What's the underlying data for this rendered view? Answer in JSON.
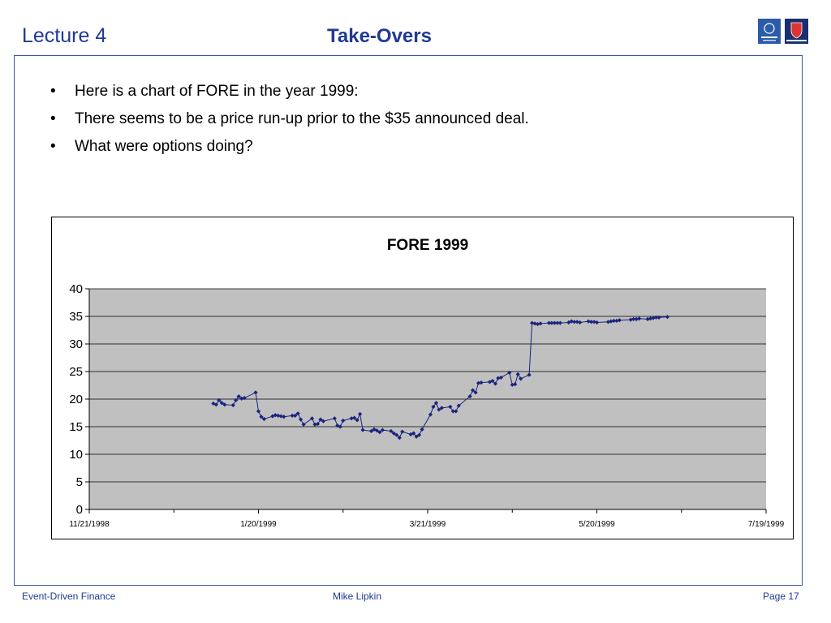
{
  "header": {
    "lecture": "Lecture 4",
    "title": "Take-Overs"
  },
  "bullets": [
    {
      "marker": "•",
      "text": "Here is a chart of FORE in the year 1999:"
    },
    {
      "marker": "•",
      "text": "There seems to be a price run-up prior to the $35 announced deal."
    },
    {
      "marker": "•",
      "text": "What were options doing?"
    }
  ],
  "footer": {
    "left": "Event-Driven Finance",
    "center": "Mike Lipkin",
    "right": "Page 17"
  },
  "colors": {
    "brand": "#1f3a93",
    "series": "#1a237e",
    "plot_bg": "#c0c0c0"
  },
  "chart_data": {
    "type": "line",
    "title": "FORE 1999",
    "xlabel": "",
    "ylabel": "",
    "xlim": [
      "1998-11-21",
      "1999-07-19"
    ],
    "ylim": [
      0,
      40
    ],
    "yticks": [
      0,
      5,
      10,
      15,
      20,
      25,
      30,
      35,
      40
    ],
    "xtick_dates": [
      "1998-11-21",
      "1999-01-20",
      "1999-03-21",
      "1999-05-20",
      "1999-07-19"
    ],
    "xtick_labels": [
      "11/21/1998",
      "1/20/1999",
      "3/21/1999",
      "5/20/1999",
      "7/19/1999"
    ],
    "minor_xtick_dates": [
      "1998-12-21",
      "1999-02-19",
      "1999-04-20",
      "1999-06-19"
    ],
    "grid": true,
    "legend": "none",
    "series": [
      {
        "marker": "diamond",
        "points": [
          [
            "1999-01-04",
            19.2
          ],
          [
            "1999-01-05",
            19.0
          ],
          [
            "1999-01-06",
            19.8
          ],
          [
            "1999-01-07",
            19.3
          ],
          [
            "1999-01-08",
            19.0
          ],
          [
            "1999-01-11",
            18.9
          ],
          [
            "1999-01-12",
            19.8
          ],
          [
            "1999-01-13",
            20.5
          ],
          [
            "1999-01-14",
            20.1
          ],
          [
            "1999-01-15",
            20.2
          ],
          [
            "1999-01-19",
            21.2
          ],
          [
            "1999-01-20",
            17.8
          ],
          [
            "1999-01-21",
            16.8
          ],
          [
            "1999-01-22",
            16.4
          ],
          [
            "1999-01-25",
            16.9
          ],
          [
            "1999-01-26",
            17.1
          ],
          [
            "1999-01-27",
            17.0
          ],
          [
            "1999-01-28",
            16.9
          ],
          [
            "1999-01-29",
            16.8
          ],
          [
            "1999-02-01",
            17.0
          ],
          [
            "1999-02-02",
            17.0
          ],
          [
            "1999-02-03",
            17.4
          ],
          [
            "1999-02-04",
            16.3
          ],
          [
            "1999-02-05",
            15.4
          ],
          [
            "1999-02-08",
            16.5
          ],
          [
            "1999-02-09",
            15.4
          ],
          [
            "1999-02-10",
            15.5
          ],
          [
            "1999-02-11",
            16.3
          ],
          [
            "1999-02-12",
            16.0
          ],
          [
            "1999-02-16",
            16.5
          ],
          [
            "1999-02-17",
            15.2
          ],
          [
            "1999-02-18",
            15.0
          ],
          [
            "1999-02-19",
            16.1
          ],
          [
            "1999-02-22",
            16.5
          ],
          [
            "1999-02-23",
            16.6
          ],
          [
            "1999-02-24",
            16.2
          ],
          [
            "1999-02-25",
            17.3
          ],
          [
            "1999-02-26",
            14.4
          ],
          [
            "1999-03-01",
            14.2
          ],
          [
            "1999-03-02",
            14.5
          ],
          [
            "1999-03-03",
            14.3
          ],
          [
            "1999-03-04",
            14.0
          ],
          [
            "1999-03-05",
            14.4
          ],
          [
            "1999-03-08",
            14.2
          ],
          [
            "1999-03-09",
            13.8
          ],
          [
            "1999-03-10",
            13.5
          ],
          [
            "1999-03-11",
            13.0
          ],
          [
            "1999-03-12",
            14.1
          ],
          [
            "1999-03-15",
            13.6
          ],
          [
            "1999-03-16",
            13.8
          ],
          [
            "1999-03-17",
            13.2
          ],
          [
            "1999-03-18",
            13.5
          ],
          [
            "1999-03-19",
            14.5
          ],
          [
            "1999-03-22",
            17.2
          ],
          [
            "1999-03-23",
            18.6
          ],
          [
            "1999-03-24",
            19.3
          ],
          [
            "1999-03-25",
            18.1
          ],
          [
            "1999-03-26",
            18.4
          ],
          [
            "1999-03-29",
            18.6
          ],
          [
            "1999-03-30",
            17.8
          ],
          [
            "1999-03-31",
            17.8
          ],
          [
            "1999-04-01",
            18.8
          ],
          [
            "1999-04-05",
            20.5
          ],
          [
            "1999-04-06",
            21.6
          ],
          [
            "1999-04-07",
            21.2
          ],
          [
            "1999-04-08",
            22.9
          ],
          [
            "1999-04-09",
            23.0
          ],
          [
            "1999-04-12",
            23.1
          ],
          [
            "1999-04-13",
            23.3
          ],
          [
            "1999-04-14",
            22.8
          ],
          [
            "1999-04-15",
            23.8
          ],
          [
            "1999-04-16",
            23.9
          ],
          [
            "1999-04-19",
            24.8
          ],
          [
            "1999-04-20",
            22.6
          ],
          [
            "1999-04-21",
            22.7
          ],
          [
            "1999-04-22",
            24.5
          ],
          [
            "1999-04-23",
            23.7
          ],
          [
            "1999-04-26",
            24.4
          ],
          [
            "1999-04-27",
            33.8
          ],
          [
            "1999-04-28",
            33.7
          ],
          [
            "1999-04-29",
            33.6
          ],
          [
            "1999-04-30",
            33.7
          ],
          [
            "1999-05-03",
            33.8
          ],
          [
            "1999-05-04",
            33.8
          ],
          [
            "1999-05-05",
            33.8
          ],
          [
            "1999-05-06",
            33.8
          ],
          [
            "1999-05-07",
            33.8
          ],
          [
            "1999-05-10",
            33.9
          ],
          [
            "1999-05-11",
            34.1
          ],
          [
            "1999-05-12",
            34.0
          ],
          [
            "1999-05-13",
            34.0
          ],
          [
            "1999-05-14",
            33.9
          ],
          [
            "1999-05-17",
            34.1
          ],
          [
            "1999-05-18",
            34.0
          ],
          [
            "1999-05-19",
            34.0
          ],
          [
            "1999-05-20",
            33.9
          ],
          [
            "1999-05-24",
            34.0
          ],
          [
            "1999-05-25",
            34.1
          ],
          [
            "1999-05-26",
            34.2
          ],
          [
            "1999-05-27",
            34.2
          ],
          [
            "1999-05-28",
            34.3
          ],
          [
            "1999-06-01",
            34.4
          ],
          [
            "1999-06-02",
            34.5
          ],
          [
            "1999-06-03",
            34.5
          ],
          [
            "1999-06-04",
            34.6
          ],
          [
            "1999-06-07",
            34.5
          ],
          [
            "1999-06-08",
            34.6
          ],
          [
            "1999-06-09",
            34.7
          ],
          [
            "1999-06-10",
            34.8
          ],
          [
            "1999-06-11",
            34.8
          ],
          [
            "1999-06-14",
            34.9
          ]
        ]
      }
    ]
  }
}
